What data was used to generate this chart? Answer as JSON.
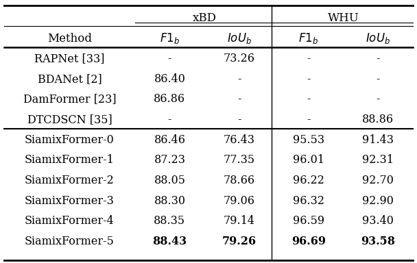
{
  "header_group": [
    "xBD",
    "WHU"
  ],
  "col_headers": [
    "Method",
    "F1_b",
    "IoU_b",
    "F1_b",
    "IoU_b"
  ],
  "rows": [
    [
      "RAPNet [33]",
      "-",
      "73.26",
      "-",
      "-"
    ],
    [
      "BDANet [2]",
      "86.40",
      "-",
      "-",
      "-"
    ],
    [
      "DamFormer [23]",
      "86.86",
      "-",
      "-",
      "-"
    ],
    [
      "DTCDSCN [35]",
      "-",
      "-",
      "-",
      "88.86"
    ],
    [
      "SiamixFormer-0",
      "86.46",
      "76.43",
      "95.53",
      "91.43"
    ],
    [
      "SiamixFormer-1",
      "87.23",
      "77.35",
      "96.01",
      "92.31"
    ],
    [
      "SiamixFormer-2",
      "88.05",
      "78.66",
      "96.22",
      "92.70"
    ],
    [
      "SiamixFormer-3",
      "88.30",
      "79.06",
      "96.32",
      "92.90"
    ],
    [
      "SiamixFormer-4",
      "88.35",
      "79.14",
      "96.59",
      "93.40"
    ],
    [
      "SiamixFormer-5",
      "88.43",
      "79.26",
      "96.69",
      "93.58"
    ]
  ],
  "bold_row_index": 9,
  "bold_cols": [
    1,
    2,
    3,
    4
  ],
  "separator_after_row": 3,
  "bg_color": "#ffffff",
  "text_color": "#000000",
  "fontsize": 11.5,
  "header_fontsize": 12
}
